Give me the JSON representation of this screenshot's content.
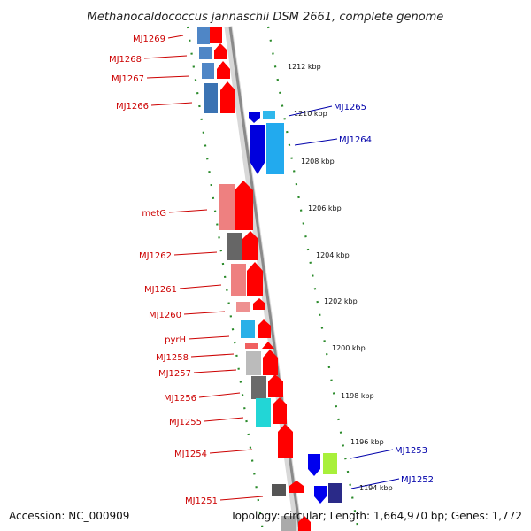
{
  "title": "Methanocaldococcus jannaschii DSM 2661, complete genome",
  "footer": {
    "accession": "Accession: NC_000909",
    "topology": "Topology: circular; Length: 1,664,970 bp; Genes: 1,772"
  },
  "colors": {
    "left_label": "#cc0000",
    "right_label": "#0000aa",
    "backbone": "#8a8a8a",
    "tick_dash": "#2a8a2a"
  },
  "kbp_ticks": [
    "1212 kbp",
    "1210 kbp",
    "1208 kbp",
    "1206 kbp",
    "1204 kbp",
    "1202 kbp",
    "1200 kbp",
    "1198 kbp",
    "1196 kbp",
    "1194 kbp"
  ],
  "left_genes": [
    {
      "label": "MJ1269"
    },
    {
      "label": "MJ1268"
    },
    {
      "label": "MJ1267"
    },
    {
      "label": "MJ1266"
    },
    {
      "label": "metG"
    },
    {
      "label": "MJ1262"
    },
    {
      "label": "MJ1261"
    },
    {
      "label": "MJ1260"
    },
    {
      "label": "pyrH"
    },
    {
      "label": "MJ1258"
    },
    {
      "label": "MJ1257"
    },
    {
      "label": "MJ1256"
    },
    {
      "label": "MJ1255"
    },
    {
      "label": "MJ1254"
    },
    {
      "label": "MJ1251"
    }
  ],
  "right_genes": [
    {
      "label": "MJ1265"
    },
    {
      "label": "MJ1264"
    },
    {
      "label": "MJ1253"
    },
    {
      "label": "MJ1252"
    }
  ]
}
